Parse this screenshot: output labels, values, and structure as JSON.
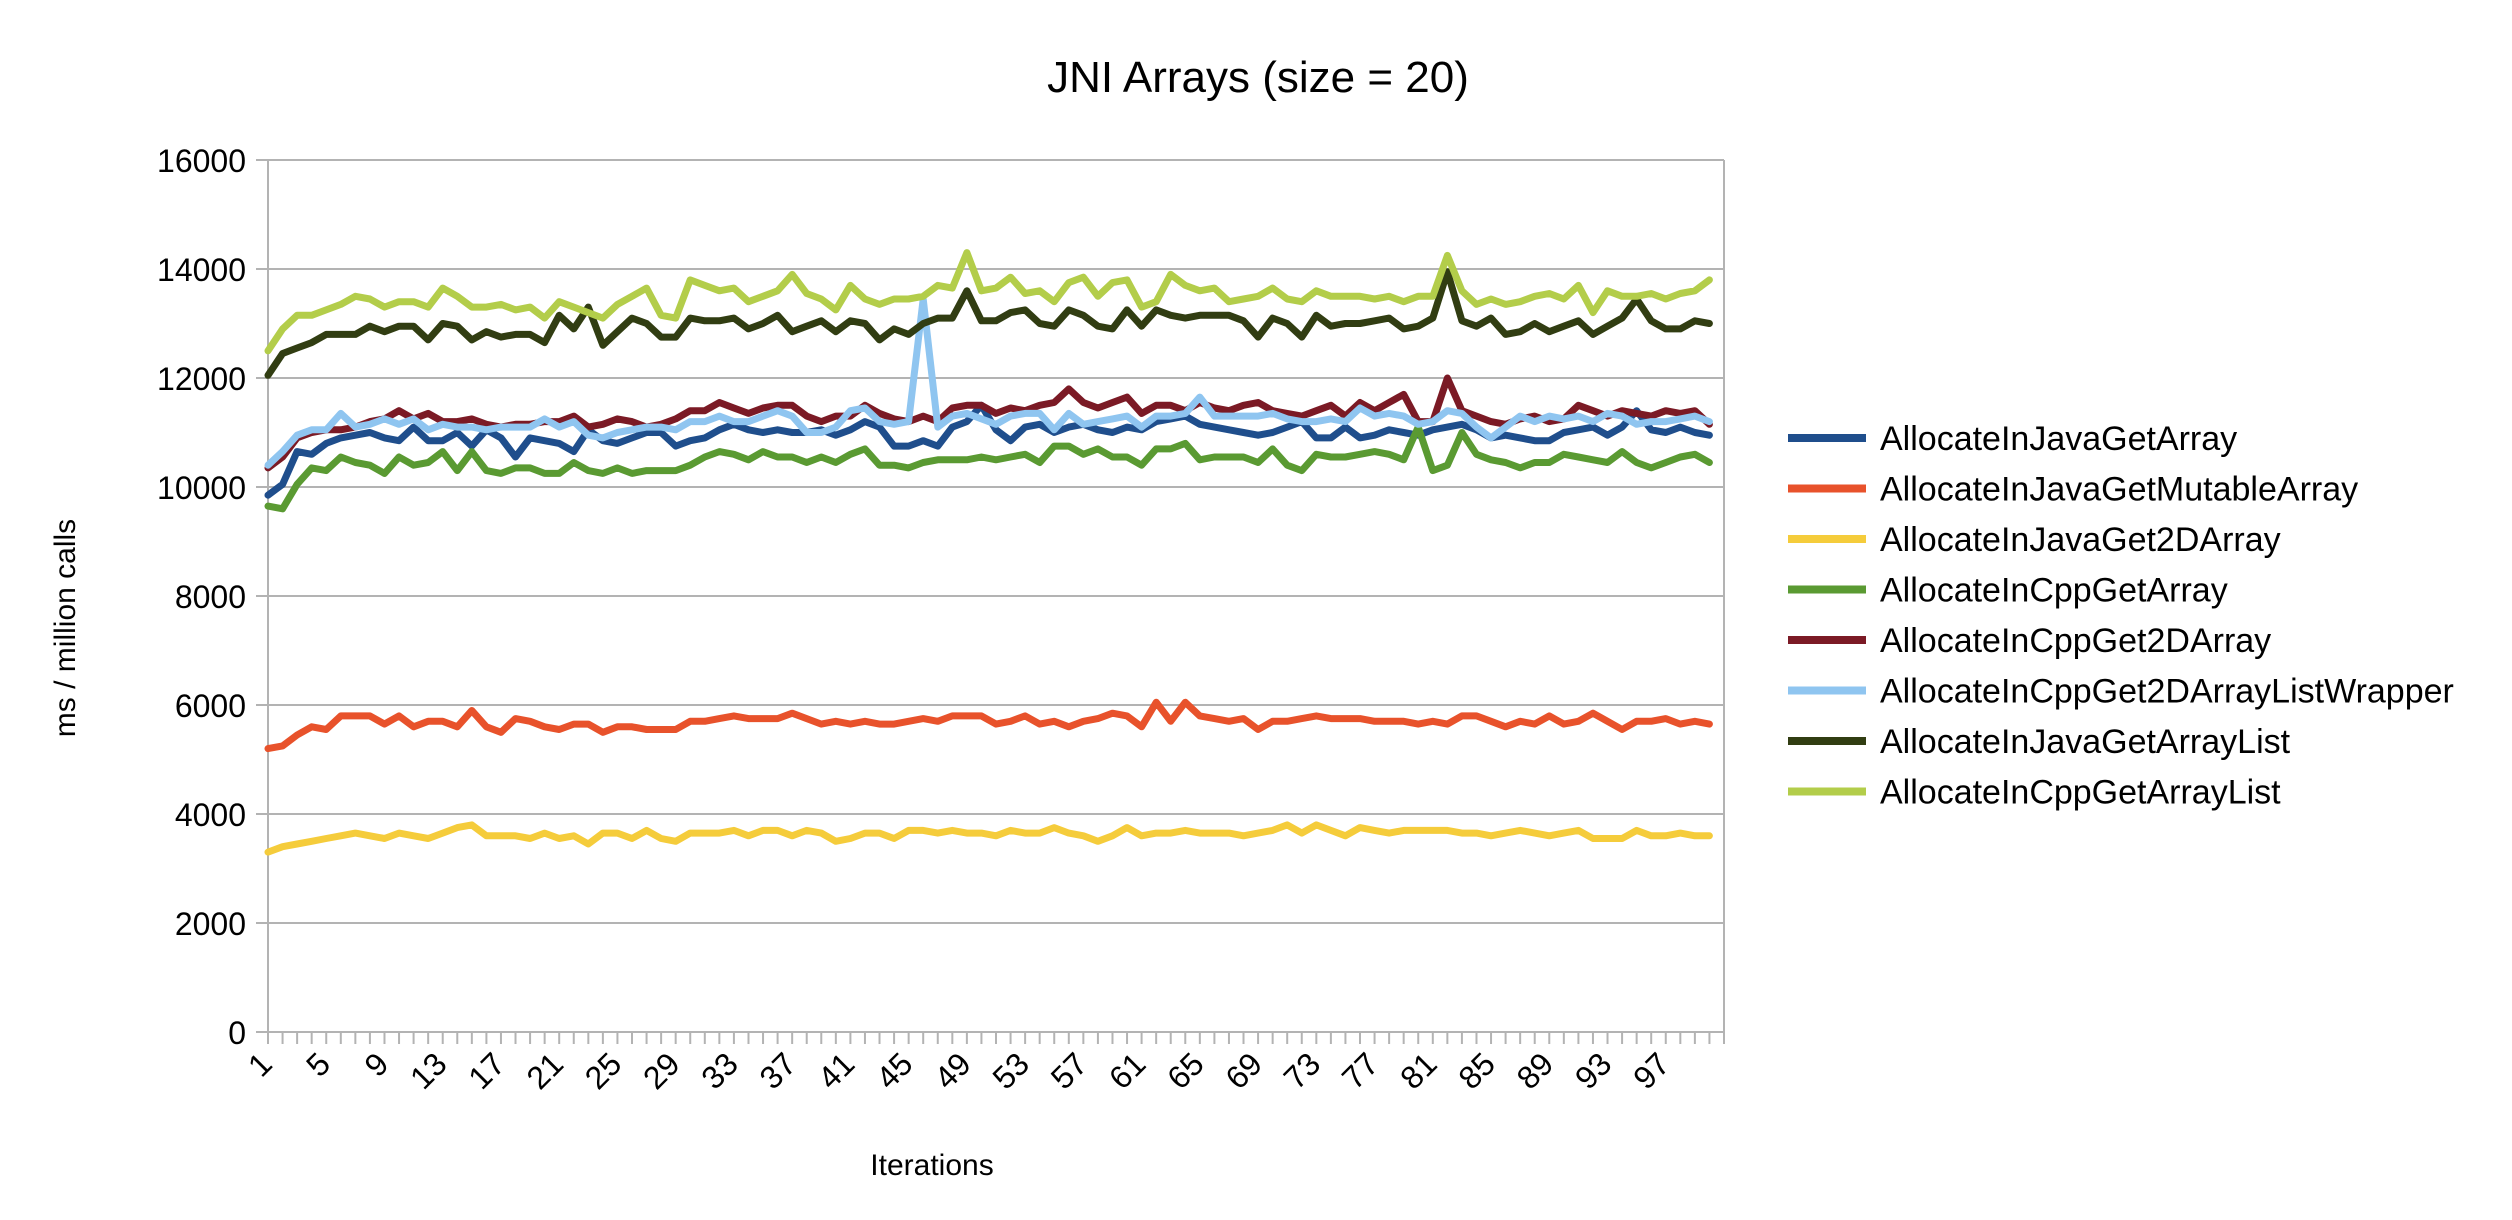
{
  "chart_data": {
    "type": "line",
    "title": "JNI Arrays (size = 20)",
    "xlabel": "Iterations",
    "ylabel": "ms / million calls",
    "ylim": [
      0,
      16000
    ],
    "yticks": [
      0,
      2000,
      4000,
      6000,
      8000,
      10000,
      12000,
      14000,
      16000
    ],
    "x": [
      1,
      2,
      3,
      4,
      5,
      6,
      7,
      8,
      9,
      10,
      11,
      12,
      13,
      14,
      15,
      16,
      17,
      18,
      19,
      20,
      21,
      22,
      23,
      24,
      25,
      26,
      27,
      28,
      29,
      30,
      31,
      32,
      33,
      34,
      35,
      36,
      37,
      38,
      39,
      40,
      41,
      42,
      43,
      44,
      45,
      46,
      47,
      48,
      49,
      50,
      51,
      52,
      53,
      54,
      55,
      56,
      57,
      58,
      59,
      60,
      61,
      62,
      63,
      64,
      65,
      66,
      67,
      68,
      69,
      70,
      71,
      72,
      73,
      74,
      75,
      76,
      77,
      78,
      79,
      80,
      81,
      82,
      83,
      84,
      85,
      86,
      87,
      88,
      89,
      90,
      91,
      92,
      93,
      94,
      95,
      96,
      97,
      98,
      99,
      100
    ],
    "xtick_labels": [
      "1",
      "5",
      "9",
      "13",
      "17",
      "21",
      "25",
      "29",
      "33",
      "37",
      "41",
      "45",
      "49",
      "53",
      "57",
      "61",
      "65",
      "69",
      "73",
      "77",
      "81",
      "85",
      "89",
      "93",
      "97"
    ],
    "grid": "horizontal",
    "legend_position": "right",
    "series": [
      {
        "name": "AllocateInJavaGetArray",
        "color": "#1f4e8c",
        "values": [
          9850,
          10050,
          10650,
          10600,
          10800,
          10900,
          10950,
          11000,
          10900,
          10850,
          11100,
          10850,
          10850,
          11000,
          10750,
          11050,
          10900,
          10550,
          10900,
          10850,
          10800,
          10650,
          11050,
          10850,
          10800,
          10900,
          11000,
          11000,
          10750,
          10850,
          10900,
          11050,
          11150,
          11050,
          11000,
          11050,
          11000,
          11000,
          11050,
          10950,
          11050,
          11200,
          11100,
          10750,
          10750,
          10850,
          10750,
          11100,
          11200,
          11500,
          11050,
          10850,
          11100,
          11150,
          11000,
          11100,
          11150,
          11050,
          11000,
          11100,
          11050,
          11200,
          11250,
          11300,
          11150,
          11100,
          11050,
          11000,
          10950,
          11000,
          11100,
          11200,
          10900,
          10900,
          11100,
          10900,
          10950,
          11050,
          11000,
          10950,
          11050,
          11100,
          11150,
          11050,
          10900,
          10950,
          10900,
          10850,
          10850,
          11000,
          11050,
          11100,
          10950,
          11100,
          11400,
          11050,
          11000,
          11100,
          11000,
          10950
        ]
      },
      {
        "name": "AllocateInJavaGetMutableArray",
        "color": "#e8522b",
        "values": [
          5200,
          5250,
          5450,
          5600,
          5550,
          5800,
          5800,
          5800,
          5650,
          5800,
          5600,
          5700,
          5700,
          5600,
          5900,
          5600,
          5500,
          5750,
          5700,
          5600,
          5550,
          5650,
          5650,
          5500,
          5600,
          5600,
          5550,
          5550,
          5550,
          5700,
          5700,
          5750,
          5800,
          5750,
          5750,
          5750,
          5850,
          5750,
          5650,
          5700,
          5650,
          5700,
          5650,
          5650,
          5700,
          5750,
          5700,
          5800,
          5800,
          5800,
          5650,
          5700,
          5800,
          5650,
          5700,
          5600,
          5700,
          5750,
          5850,
          5800,
          5600,
          6050,
          5700,
          6050,
          5800,
          5750,
          5700,
          5750,
          5550,
          5700,
          5700,
          5750,
          5800,
          5750,
          5750,
          5750,
          5700,
          5700,
          5700,
          5650,
          5700,
          5650,
          5800,
          5800,
          5700,
          5600,
          5700,
          5650,
          5800,
          5650,
          5700,
          5850,
          5700,
          5550,
          5700,
          5700,
          5750,
          5650,
          5700,
          5650
        ]
      },
      {
        "name": "AllocateInJavaGet2DArray",
        "color": "#f5cc3b",
        "values": [
          3300,
          3400,
          3450,
          3500,
          3550,
          3600,
          3650,
          3600,
          3550,
          3650,
          3600,
          3550,
          3650,
          3750,
          3800,
          3600,
          3600,
          3600,
          3550,
          3650,
          3550,
          3600,
          3450,
          3650,
          3650,
          3550,
          3700,
          3550,
          3500,
          3650,
          3650,
          3650,
          3700,
          3600,
          3700,
          3700,
          3600,
          3700,
          3650,
          3500,
          3550,
          3650,
          3650,
          3550,
          3700,
          3700,
          3650,
          3700,
          3650,
          3650,
          3600,
          3700,
          3650,
          3650,
          3750,
          3650,
          3600,
          3500,
          3600,
          3750,
          3600,
          3650,
          3650,
          3700,
          3650,
          3650,
          3650,
          3600,
          3650,
          3700,
          3800,
          3650,
          3800,
          3700,
          3600,
          3750,
          3700,
          3650,
          3700,
          3700,
          3700,
          3700,
          3650,
          3650,
          3600,
          3650,
          3700,
          3650,
          3600,
          3650,
          3700,
          3550,
          3550,
          3550,
          3700,
          3600,
          3600,
          3650,
          3600,
          3600
        ]
      },
      {
        "name": "AllocateInCppGetArray",
        "color": "#5a9a32",
        "values": [
          9650,
          9600,
          10050,
          10350,
          10300,
          10550,
          10450,
          10400,
          10250,
          10550,
          10400,
          10450,
          10650,
          10300,
          10650,
          10300,
          10250,
          10350,
          10350,
          10250,
          10250,
          10450,
          10300,
          10250,
          10350,
          10250,
          10300,
          10300,
          10300,
          10400,
          10550,
          10650,
          10600,
          10500,
          10650,
          10550,
          10550,
          10450,
          10550,
          10450,
          10600,
          10700,
          10400,
          10400,
          10350,
          10450,
          10500,
          10500,
          10500,
          10550,
          10500,
          10550,
          10600,
          10450,
          10750,
          10750,
          10600,
          10700,
          10550,
          10550,
          10400,
          10700,
          10700,
          10800,
          10500,
          10550,
          10550,
          10550,
          10450,
          10700,
          10400,
          10300,
          10600,
          10550,
          10550,
          10600,
          10650,
          10600,
          10500,
          11100,
          10300,
          10400,
          11000,
          10600,
          10500,
          10450,
          10350,
          10450,
          10450,
          10600,
          10550,
          10500,
          10450,
          10650,
          10450,
          10350,
          10450,
          10550,
          10600,
          10450
        ]
      },
      {
        "name": "AllocateInCppGet2DArray",
        "color": "#7b1a25",
        "values": [
          10350,
          10550,
          10900,
          11000,
          11050,
          11050,
          11100,
          11200,
          11250,
          11400,
          11250,
          11350,
          11200,
          11200,
          11250,
          11150,
          11100,
          11150,
          11150,
          11200,
          11200,
          11300,
          11100,
          11150,
          11250,
          11200,
          11100,
          11150,
          11250,
          11400,
          11400,
          11550,
          11450,
          11350,
          11450,
          11500,
          11500,
          11300,
          11200,
          11300,
          11300,
          11500,
          11350,
          11250,
          11200,
          11300,
          11200,
          11450,
          11500,
          11500,
          11350,
          11450,
          11400,
          11500,
          11550,
          11800,
          11550,
          11450,
          11550,
          11650,
          11350,
          11500,
          11500,
          11400,
          11550,
          11450,
          11400,
          11500,
          11550,
          11400,
          11350,
          11300,
          11400,
          11500,
          11300,
          11550,
          11400,
          11550,
          11700,
          11200,
          11200,
          12000,
          11400,
          11300,
          11200,
          11150,
          11250,
          11300,
          11200,
          11250,
          11500,
          11400,
          11300,
          11400,
          11350,
          11300,
          11400,
          11350,
          11400,
          11150
        ]
      },
      {
        "name": "AllocateInCppGet2DArrayListWrapper",
        "color": "#8fc5f0",
        "values": [
          10400,
          10650,
          10950,
          11050,
          11050,
          11350,
          11100,
          11150,
          11250,
          11150,
          11250,
          11050,
          11150,
          11100,
          11100,
          11050,
          11100,
          11100,
          11100,
          11250,
          11100,
          11200,
          10950,
          10900,
          11000,
          11050,
          11100,
          11100,
          11050,
          11200,
          11200,
          11300,
          11200,
          11200,
          11300,
          11400,
          11300,
          11000,
          11000,
          11100,
          11400,
          11450,
          11200,
          11150,
          11200,
          13450,
          11100,
          11300,
          11350,
          11250,
          11150,
          11300,
          11350,
          11350,
          11050,
          11350,
          11150,
          11200,
          11250,
          11300,
          11100,
          11300,
          11300,
          11350,
          11650,
          11300,
          11300,
          11300,
          11300,
          11350,
          11250,
          11200,
          11200,
          11250,
          11200,
          11450,
          11300,
          11350,
          11300,
          11150,
          11200,
          11400,
          11350,
          11100,
          10900,
          11100,
          11300,
          11200,
          11300,
          11250,
          11300,
          11200,
          11350,
          11300,
          11150,
          11200,
          11200,
          11250,
          11300,
          11200
        ]
      },
      {
        "name": "AllocateInJavaGetArrayList",
        "color": "#313d12",
        "values": [
          12050,
          12450,
          12550,
          12650,
          12800,
          12800,
          12800,
          12950,
          12850,
          12950,
          12950,
          12700,
          13000,
          12950,
          12700,
          12850,
          12750,
          12800,
          12800,
          12650,
          13150,
          12900,
          13300,
          12600,
          12850,
          13100,
          13000,
          12750,
          12750,
          13100,
          13050,
          13050,
          13100,
          12900,
          13000,
          13150,
          12850,
          12950,
          13050,
          12850,
          13050,
          13000,
          12700,
          12900,
          12800,
          13000,
          13100,
          13100,
          13600,
          13050,
          13050,
          13200,
          13250,
          13000,
          12950,
          13250,
          13150,
          12950,
          12900,
          13250,
          12950,
          13250,
          13150,
          13100,
          13150,
          13150,
          13150,
          13050,
          12750,
          13100,
          13000,
          12750,
          13150,
          12950,
          13000,
          13000,
          13050,
          13100,
          12900,
          12950,
          13100,
          13950,
          13050,
          12950,
          13100,
          12800,
          12850,
          13000,
          12850,
          12950,
          13050,
          12800,
          12950,
          13100,
          13450,
          13050,
          12900,
          12900,
          13050,
          13000
        ]
      },
      {
        "name": "AllocateInCppGetArrayList",
        "color": "#b3cd4a",
        "values": [
          12500,
          12900,
          13150,
          13150,
          13250,
          13350,
          13500,
          13450,
          13300,
          13400,
          13400,
          13300,
          13650,
          13500,
          13300,
          13300,
          13350,
          13250,
          13300,
          13100,
          13400,
          13300,
          13200,
          13100,
          13350,
          13500,
          13650,
          13150,
          13100,
          13800,
          13700,
          13600,
          13650,
          13400,
          13500,
          13600,
          13900,
          13550,
          13450,
          13250,
          13700,
          13450,
          13350,
          13450,
          13450,
          13500,
          13700,
          13650,
          14300,
          13600,
          13650,
          13850,
          13550,
          13600,
          13400,
          13750,
          13850,
          13500,
          13750,
          13800,
          13300,
          13400,
          13900,
          13700,
          13600,
          13650,
          13400,
          13450,
          13500,
          13650,
          13450,
          13400,
          13600,
          13500,
          13500,
          13500,
          13450,
          13500,
          13400,
          13500,
          13500,
          14250,
          13600,
          13350,
          13450,
          13350,
          13400,
          13500,
          13550,
          13450,
          13700,
          13200,
          13600,
          13500,
          13500,
          13550,
          13450,
          13550,
          13600,
          13800
        ]
      }
    ]
  }
}
